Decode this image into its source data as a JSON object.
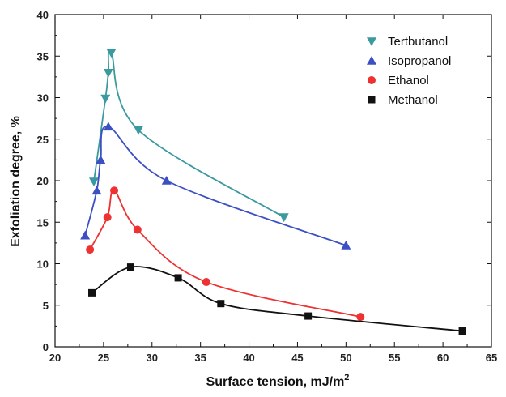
{
  "chart_data": {
    "type": "line",
    "xlabel": "Surface tension, mJ/m",
    "xlabel_sup": "2",
    "ylabel": "Exfoliation degree, %",
    "xlim": [
      20,
      65
    ],
    "ylim": [
      0,
      40
    ],
    "xticks": [
      "20",
      "25",
      "30",
      "35",
      "40",
      "45",
      "50",
      "55",
      "60",
      "65"
    ],
    "yticks": [
      "0",
      "5",
      "10",
      "15",
      "20",
      "25",
      "30",
      "35",
      "40"
    ],
    "legend_position": "top-right",
    "grid": false,
    "series": [
      {
        "name": "Tertbutanol",
        "marker": "triangle-down",
        "color": "#3a9aa0",
        "x": [
          24.0,
          25.2,
          25.5,
          25.8,
          28.6,
          43.6
        ],
        "y": [
          19.9,
          29.9,
          33.0,
          35.4,
          26.1,
          15.6
        ]
      },
      {
        "name": "Isopropanol",
        "marker": "triangle-up",
        "color": "#3c50c4",
        "x": [
          23.1,
          24.3,
          24.7,
          25.5,
          31.5,
          50.0
        ],
        "y": [
          13.4,
          18.8,
          22.5,
          26.5,
          20.0,
          12.2
        ]
      },
      {
        "name": "Ethanol",
        "marker": "circle",
        "color": "#ee3131",
        "x": [
          23.6,
          25.4,
          26.1,
          28.5,
          35.6,
          51.5
        ],
        "y": [
          11.7,
          15.6,
          18.8,
          14.1,
          7.8,
          3.6
        ]
      },
      {
        "name": "Methanol",
        "marker": "square",
        "color": "#111111",
        "x": [
          23.8,
          27.8,
          32.7,
          37.1,
          46.1,
          62.0
        ],
        "y": [
          6.5,
          9.6,
          8.3,
          5.2,
          3.7,
          1.9
        ]
      }
    ]
  }
}
